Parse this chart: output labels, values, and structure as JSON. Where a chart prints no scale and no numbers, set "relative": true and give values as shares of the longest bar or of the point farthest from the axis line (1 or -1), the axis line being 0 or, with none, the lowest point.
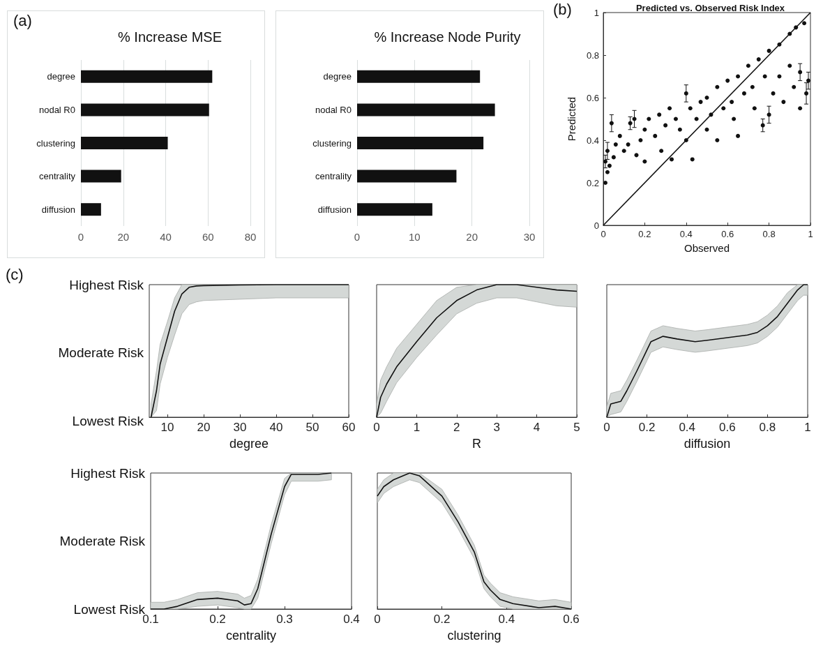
{
  "chart_data": [
    {
      "type": "bar",
      "orientation": "horizontal",
      "title": "% Increase MSE",
      "annotations": [
        "(a)"
      ],
      "categories": [
        "degree",
        "nodal R0",
        "clustering",
        "centrality",
        "diffusion"
      ],
      "values": [
        62,
        60.5,
        41,
        19,
        9.5
      ],
      "color": "#111111",
      "xlim": [
        0,
        80
      ],
      "xticks": [
        0,
        20,
        40,
        60,
        80
      ],
      "grid": "x"
    },
    {
      "type": "bar",
      "orientation": "horizontal",
      "title": "% Increase Node Purity",
      "categories": [
        "degree",
        "nodal R0",
        "clustering",
        "centrality",
        "diffusion"
      ],
      "values": [
        21.4,
        24,
        22,
        17.3,
        13.1
      ],
      "color": "#111111",
      "xlim": [
        0,
        30
      ],
      "xticks": [
        0,
        10,
        20,
        30
      ],
      "grid": "x"
    },
    {
      "type": "scatter",
      "title": "Predicted vs. Observed Risk Index",
      "annotations": [
        "(b)"
      ],
      "xlabel": "Observed",
      "ylabel": "Predicted",
      "xlim": [
        0,
        1
      ],
      "ylim": [
        0,
        1
      ],
      "xticks": [
        0,
        0.2,
        0.4,
        0.6,
        0.8,
        1
      ],
      "yticks": [
        0,
        0.2,
        0.4,
        0.6,
        0.8,
        1
      ],
      "series": [
        {
          "type": "scatter",
          "color": "#111111",
          "x": [
            0.01,
            0.01,
            0.02,
            0.02,
            0.03,
            0.04,
            0.05,
            0.06,
            0.08,
            0.1,
            0.12,
            0.13,
            0.15,
            0.16,
            0.18,
            0.2,
            0.2,
            0.22,
            0.25,
            0.27,
            0.28,
            0.3,
            0.32,
            0.33,
            0.35,
            0.37,
            0.4,
            0.4,
            0.42,
            0.43,
            0.45,
            0.47,
            0.5,
            0.5,
            0.52,
            0.55,
            0.55,
            0.58,
            0.6,
            0.62,
            0.63,
            0.65,
            0.65,
            0.68,
            0.7,
            0.72,
            0.73,
            0.75,
            0.77,
            0.78,
            0.8,
            0.8,
            0.82,
            0.85,
            0.85,
            0.87,
            0.9,
            0.9,
            0.92,
            0.93,
            0.95,
            0.95,
            0.97,
            0.98,
            0.99
          ],
          "values": [
            0.2,
            0.3,
            0.25,
            0.35,
            0.28,
            0.48,
            0.32,
            0.38,
            0.42,
            0.35,
            0.38,
            0.48,
            0.5,
            0.33,
            0.4,
            0.45,
            0.3,
            0.5,
            0.42,
            0.52,
            0.35,
            0.47,
            0.55,
            0.31,
            0.5,
            0.45,
            0.62,
            0.4,
            0.55,
            0.31,
            0.5,
            0.58,
            0.45,
            0.6,
            0.52,
            0.65,
            0.4,
            0.55,
            0.68,
            0.58,
            0.5,
            0.7,
            0.42,
            0.62,
            0.75,
            0.65,
            0.55,
            0.78,
            0.47,
            0.7,
            0.82,
            0.52,
            0.62,
            0.85,
            0.7,
            0.58,
            0.9,
            0.75,
            0.65,
            0.93,
            0.72,
            0.55,
            0.95,
            0.62,
            0.68
          ],
          "errors": [
            null,
            0.03,
            null,
            0.04,
            null,
            0.04,
            null,
            null,
            null,
            null,
            null,
            0.03,
            0.04,
            null,
            null,
            null,
            null,
            null,
            null,
            null,
            null,
            null,
            null,
            null,
            null,
            null,
            0.04,
            null,
            null,
            null,
            null,
            null,
            null,
            null,
            null,
            null,
            null,
            null,
            null,
            null,
            null,
            null,
            null,
            null,
            null,
            null,
            null,
            null,
            0.03,
            null,
            null,
            0.04,
            null,
            null,
            null,
            null,
            null,
            null,
            null,
            null,
            0.04,
            null,
            null,
            0.05,
            0.04
          ]
        },
        {
          "type": "line",
          "color": "#111111",
          "x": [
            0,
            1
          ],
          "values": [
            0,
            1
          ]
        }
      ]
    },
    {
      "type": "line",
      "relative": true,
      "annotations": [
        "(c)",
        "Highest Risk",
        "Moderate Risk",
        "Lowest Risk"
      ],
      "xlabel": "degree",
      "xlim": [
        5,
        60
      ],
      "xticks": [
        10,
        20,
        30,
        40,
        50,
        60
      ],
      "series": [
        {
          "color": "#111111",
          "x": [
            5.5,
            7,
            8,
            10,
            12,
            14,
            16,
            18,
            20,
            30,
            40,
            50,
            60
          ],
          "values": [
            0,
            0.2,
            0.4,
            0.6,
            0.8,
            0.93,
            0.98,
            0.99,
            0.993,
            0.997,
            1,
            1,
            1
          ],
          "lower": [
            0,
            0.05,
            0.25,
            0.45,
            0.62,
            0.78,
            0.85,
            0.87,
            0.88,
            0.89,
            0.9,
            0.9,
            0.9
          ],
          "upper": [
            0.1,
            0.35,
            0.55,
            0.72,
            0.9,
            1,
            1,
            1,
            1,
            1,
            1,
            1,
            1
          ]
        }
      ]
    },
    {
      "type": "line",
      "relative": true,
      "xlabel": "R",
      "xlim": [
        0,
        5
      ],
      "xticks": [
        0,
        1,
        2,
        3,
        4,
        5
      ],
      "series": [
        {
          "color": "#111111",
          "x": [
            0,
            0.1,
            0.25,
            0.5,
            1,
            1.5,
            2,
            2.5,
            3,
            3.5,
            4,
            4.5,
            5
          ],
          "values": [
            0,
            0.15,
            0.25,
            0.38,
            0.57,
            0.75,
            0.88,
            0.96,
            1,
            1,
            0.98,
            0.96,
            0.95
          ],
          "lower": [
            0,
            0.03,
            0.12,
            0.26,
            0.45,
            0.62,
            0.78,
            0.86,
            0.9,
            0.9,
            0.87,
            0.84,
            0.83
          ],
          "upper": [
            0.1,
            0.28,
            0.38,
            0.52,
            0.7,
            0.88,
            0.98,
            1,
            1,
            1,
            1,
            1,
            1
          ]
        }
      ]
    },
    {
      "type": "line",
      "relative": true,
      "xlabel": "diffusion",
      "xlim": [
        0,
        1
      ],
      "xticks": [
        0,
        0.2,
        0.4,
        0.6,
        0.8,
        1
      ],
      "series": [
        {
          "color": "#111111",
          "x": [
            0,
            0.02,
            0.07,
            0.1,
            0.15,
            0.22,
            0.28,
            0.35,
            0.44,
            0.5,
            0.6,
            0.7,
            0.75,
            0.8,
            0.85,
            0.9,
            0.95,
            0.98,
            1
          ],
          "values": [
            0,
            0.1,
            0.12,
            0.2,
            0.35,
            0.57,
            0.61,
            0.59,
            0.57,
            0.58,
            0.6,
            0.62,
            0.64,
            0.69,
            0.76,
            0.86,
            0.96,
            1,
            1
          ],
          "lower": [
            0,
            0.02,
            0.04,
            0.12,
            0.27,
            0.49,
            0.53,
            0.51,
            0.49,
            0.5,
            0.52,
            0.54,
            0.56,
            0.61,
            0.68,
            0.78,
            0.88,
            0.92,
            0.92
          ],
          "upper": [
            0.08,
            0.18,
            0.2,
            0.28,
            0.43,
            0.65,
            0.69,
            0.67,
            0.65,
            0.66,
            0.68,
            0.7,
            0.72,
            0.77,
            0.84,
            0.94,
            1,
            1,
            1
          ]
        }
      ]
    },
    {
      "type": "line",
      "relative": true,
      "annotations": [
        "Highest Risk",
        "Moderate Risk",
        "Lowest Risk"
      ],
      "xlabel": "centrality",
      "xlim": [
        0.1,
        0.4
      ],
      "xticks": [
        0.1,
        0.2,
        0.3,
        0.4
      ],
      "series": [
        {
          "color": "#111111",
          "x": [
            0.1,
            0.12,
            0.14,
            0.17,
            0.2,
            0.23,
            0.24,
            0.25,
            0.26,
            0.28,
            0.3,
            0.31,
            0.35,
            0.37
          ],
          "values": [
            0,
            0,
            0.02,
            0.07,
            0.08,
            0.06,
            0.03,
            0.04,
            0.15,
            0.55,
            0.9,
            0.99,
            0.99,
            1
          ],
          "lower": [
            0,
            0,
            0,
            0.02,
            0.03,
            0.01,
            0,
            0,
            0.08,
            0.48,
            0.84,
            0.94,
            0.94,
            0.95
          ],
          "upper": [
            0.05,
            0.05,
            0.07,
            0.12,
            0.13,
            0.11,
            0.08,
            0.1,
            0.22,
            0.62,
            0.96,
            1,
            1,
            1
          ]
        }
      ]
    },
    {
      "type": "line",
      "relative": true,
      "xlabel": "clustering",
      "xlim": [
        0,
        0.6
      ],
      "xticks": [
        0,
        0.2,
        0.4,
        0.6
      ],
      "series": [
        {
          "color": "#111111",
          "x": [
            0,
            0.02,
            0.05,
            0.1,
            0.13,
            0.2,
            0.25,
            0.3,
            0.33,
            0.35,
            0.38,
            0.42,
            0.5,
            0.55,
            0.6
          ],
          "values": [
            0.83,
            0.9,
            0.95,
            1,
            0.98,
            0.83,
            0.64,
            0.42,
            0.2,
            0.14,
            0.07,
            0.04,
            0.01,
            0.02,
            0
          ],
          "lower": [
            0.78,
            0.85,
            0.9,
            0.95,
            0.93,
            0.78,
            0.59,
            0.37,
            0.15,
            0.09,
            0.02,
            0,
            0,
            0,
            0
          ],
          "upper": [
            0.88,
            0.95,
            1,
            1,
            1,
            0.88,
            0.69,
            0.47,
            0.25,
            0.19,
            0.12,
            0.09,
            0.06,
            0.07,
            0.05
          ]
        }
      ]
    }
  ]
}
